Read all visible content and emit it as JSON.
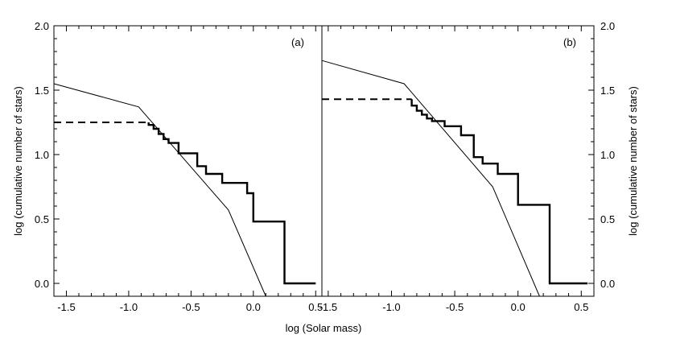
{
  "chart_data": {
    "type": "line",
    "xlabel": "log (Solar mass)",
    "ylabel_left": "log (cumulative number of stars)",
    "ylabel_right": "log (cumulative number of stars)",
    "ylim": [
      -0.1,
      2.0
    ],
    "yticks": [
      "0.0",
      "0.5",
      "1.0",
      "1.5",
      "2.0"
    ],
    "legend": "none",
    "grid": false,
    "panels": [
      {
        "label": "(a)",
        "xlim": [
          -1.6,
          0.55
        ],
        "xticks": [
          "-1.5",
          "-1.0",
          "-0.5",
          "0.0",
          "0.5"
        ],
        "series": [
          {
            "style": "thin-solid",
            "x": [
              -1.6,
              -0.92,
              -0.2,
              0.1
            ],
            "y": [
              1.55,
              1.37,
              0.57,
              -0.1
            ]
          },
          {
            "style": "dashed",
            "x": [
              -1.6,
              -0.84
            ],
            "y": [
              1.25,
              1.25
            ]
          },
          {
            "style": "thick-step",
            "x": [
              -0.84,
              -0.84,
              -0.8,
              -0.8,
              -0.76,
              -0.76,
              -0.72,
              -0.72,
              -0.68,
              -0.68,
              -0.6,
              -0.6,
              -0.45,
              -0.45,
              -0.38,
              -0.38,
              -0.25,
              -0.25,
              -0.05,
              -0.05,
              0.0,
              0.0,
              0.25,
              0.25,
              0.5
            ],
            "y": [
              1.25,
              1.23,
              1.23,
              1.2,
              1.2,
              1.16,
              1.16,
              1.12,
              1.12,
              1.09,
              1.09,
              1.01,
              1.01,
              0.91,
              0.91,
              0.85,
              0.85,
              0.78,
              0.78,
              0.7,
              0.7,
              0.48,
              0.48,
              0.0,
              0.0
            ]
          }
        ]
      },
      {
        "label": "(b)",
        "xlim": [
          -1.55,
          0.6
        ],
        "xticks": [
          "-1.5",
          "-1.0",
          "-0.5",
          "0.0",
          "0.5"
        ],
        "series": [
          {
            "style": "thin-solid",
            "x": [
              -1.55,
              -0.9,
              -0.2,
              0.17
            ],
            "y": [
              1.73,
              1.55,
              0.75,
              -0.1
            ]
          },
          {
            "style": "dashed",
            "x": [
              -1.55,
              -0.84
            ],
            "y": [
              1.43,
              1.43
            ]
          },
          {
            "style": "thick-step",
            "x": [
              -0.84,
              -0.84,
              -0.8,
              -0.8,
              -0.76,
              -0.76,
              -0.72,
              -0.72,
              -0.68,
              -0.68,
              -0.58,
              -0.58,
              -0.45,
              -0.45,
              -0.35,
              -0.35,
              -0.28,
              -0.28,
              -0.16,
              -0.16,
              0.0,
              0.0,
              0.25,
              0.25,
              0.55
            ],
            "y": [
              1.43,
              1.38,
              1.38,
              1.34,
              1.34,
              1.31,
              1.31,
              1.28,
              1.28,
              1.26,
              1.26,
              1.22,
              1.22,
              1.15,
              1.15,
              0.98,
              0.98,
              0.93,
              0.93,
              0.85,
              0.85,
              0.61,
              0.61,
              0.0,
              0.0
            ]
          }
        ]
      }
    ]
  }
}
